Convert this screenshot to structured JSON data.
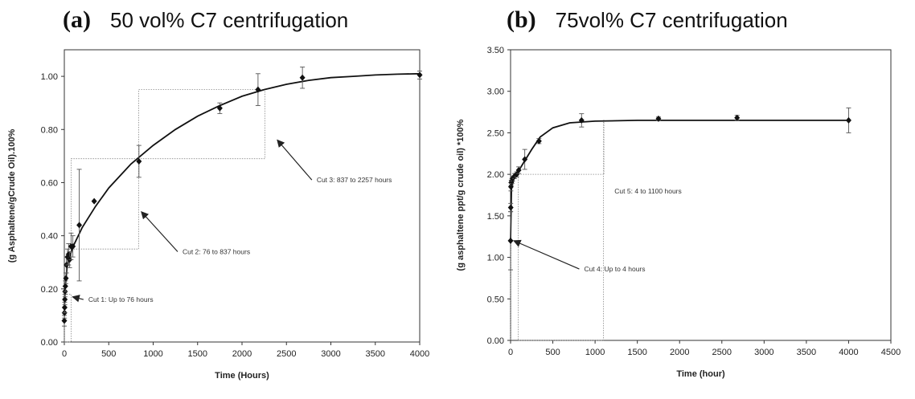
{
  "chart_data": [
    {
      "type": "scatter",
      "panel_label": "(a)",
      "title": "50 vol% C7 centrifugation",
      "xlabel": "Time (Hours)",
      "ylabel": "(g Asphaltene/gCrude Oil).100%",
      "xlim": [
        0,
        4000
      ],
      "ylim": [
        0,
        1.1
      ],
      "xticks": [
        0,
        500,
        1000,
        1500,
        2000,
        2500,
        3000,
        3500,
        4000
      ],
      "yticks": [
        "0.00",
        "0.20",
        "0.40",
        "0.60",
        "0.80",
        "1.00"
      ],
      "grid": false,
      "series": [
        {
          "x": [
            0,
            2,
            4,
            6,
            8,
            12,
            18,
            24,
            36,
            48,
            60,
            76,
            96,
            168,
            336,
            840,
            1750,
            2180,
            2680,
            4000
          ],
          "y": [
            0.08,
            0.11,
            0.13,
            0.16,
            0.19,
            0.21,
            0.24,
            0.29,
            0.32,
            0.33,
            0.31,
            0.36,
            0.36,
            0.44,
            0.53,
            0.68,
            0.88,
            0.95,
            0.995,
            1.005
          ],
          "err": [
            0.02,
            0.02,
            0.02,
            0.02,
            0.02,
            0.02,
            0.02,
            0.03,
            0.03,
            0.04,
            0.03,
            0.05,
            0.04,
            0.21,
            0.0,
            0.06,
            0.02,
            0.06,
            0.04,
            0.015
          ]
        }
      ],
      "fit_curve": {
        "x": [
          0,
          10,
          30,
          60,
          100,
          200,
          350,
          500,
          750,
          1000,
          1250,
          1500,
          1750,
          2000,
          2250,
          2500,
          2750,
          3000,
          3250,
          3500,
          3750,
          4000
        ],
        "y": [
          0.12,
          0.2,
          0.28,
          0.32,
          0.36,
          0.43,
          0.51,
          0.58,
          0.67,
          0.74,
          0.8,
          0.85,
          0.89,
          0.925,
          0.95,
          0.97,
          0.985,
          0.995,
          1.0,
          1.005,
          1.008,
          1.01
        ]
      },
      "cut_boxes": [
        {
          "x": [
            0,
            76
          ],
          "y": [
            0,
            0.18
          ]
        },
        {
          "x": [
            76,
            837
          ],
          "y": [
            0.35,
            0.69
          ]
        },
        {
          "x": [
            837,
            2257
          ],
          "y": [
            0.69,
            0.95
          ]
        }
      ],
      "annotations": [
        {
          "text": "Cut 1: Up to 76 hours",
          "x": 270,
          "y": 0.16,
          "arrow_to_x": 76,
          "arrow_to_y": 0.17
        },
        {
          "text": "Cut 2: 76 to 837 hours",
          "x": 1330,
          "y": 0.34,
          "arrow_to_x": 850,
          "arrow_to_y": 0.49
        },
        {
          "text": "Cut 3: 837 to 2257 hours",
          "x": 2840,
          "y": 0.61,
          "arrow_to_x": 2380,
          "arrow_to_y": 0.76
        }
      ]
    },
    {
      "type": "scatter",
      "panel_label": "(b)",
      "title": "75vol% C7 centrifugation",
      "xlabel": "Time (hour)",
      "ylabel": "(g asphaltene ppt/g crude oil) *100%",
      "xlim": [
        0,
        4500
      ],
      "ylim": [
        0,
        3.5
      ],
      "xticks": [
        0,
        500,
        1000,
        1500,
        2000,
        2500,
        3000,
        3500,
        4000,
        4500
      ],
      "yticks": [
        "0.00",
        "0.50",
        "1.00",
        "1.50",
        "2.00",
        "2.50",
        "3.00",
        "3.50"
      ],
      "grid": false,
      "series": [
        {
          "x": [
            0,
            2,
            4,
            8,
            16,
            24,
            48,
            72,
            96,
            168,
            336,
            840,
            1750,
            2680,
            4000
          ],
          "y": [
            1.2,
            1.6,
            1.85,
            1.9,
            1.92,
            1.95,
            1.98,
            2.0,
            2.05,
            2.18,
            2.4,
            2.65,
            2.67,
            2.68,
            2.65
          ],
          "err": [
            0.35,
            0.05,
            0.05,
            0.03,
            0.03,
            0.03,
            0.03,
            0.03,
            0.04,
            0.12,
            0.03,
            0.08,
            0.02,
            0.03,
            0.15
          ]
        }
      ],
      "fit_curve": {
        "x": [
          0,
          10,
          30,
          60,
          100,
          160,
          250,
          350,
          500,
          700,
          1000,
          1500,
          2000,
          3000,
          4000
        ],
        "y": [
          1.2,
          1.82,
          1.93,
          1.99,
          2.05,
          2.15,
          2.3,
          2.45,
          2.56,
          2.62,
          2.64,
          2.65,
          2.65,
          2.65,
          2.65
        ]
      },
      "cut_boxes": [
        {
          "x": [
            0,
            4
          ],
          "y": [
            0,
            1.2
          ]
        },
        {
          "x": [
            90,
            1100
          ],
          "y": [
            0,
            2.0
          ]
        },
        {
          "x": [
            1100,
            1100
          ],
          "y": [
            2.0,
            2.65
          ]
        }
      ],
      "annotations": [
        {
          "text": "Cut 5: 4 to 1100 hours",
          "x": 1230,
          "y": 1.8
        },
        {
          "text": "Cut 4: Up to 4 hours",
          "x": 870,
          "y": 0.86,
          "arrow_to_x": 20,
          "arrow_to_y": 1.2
        }
      ]
    }
  ]
}
